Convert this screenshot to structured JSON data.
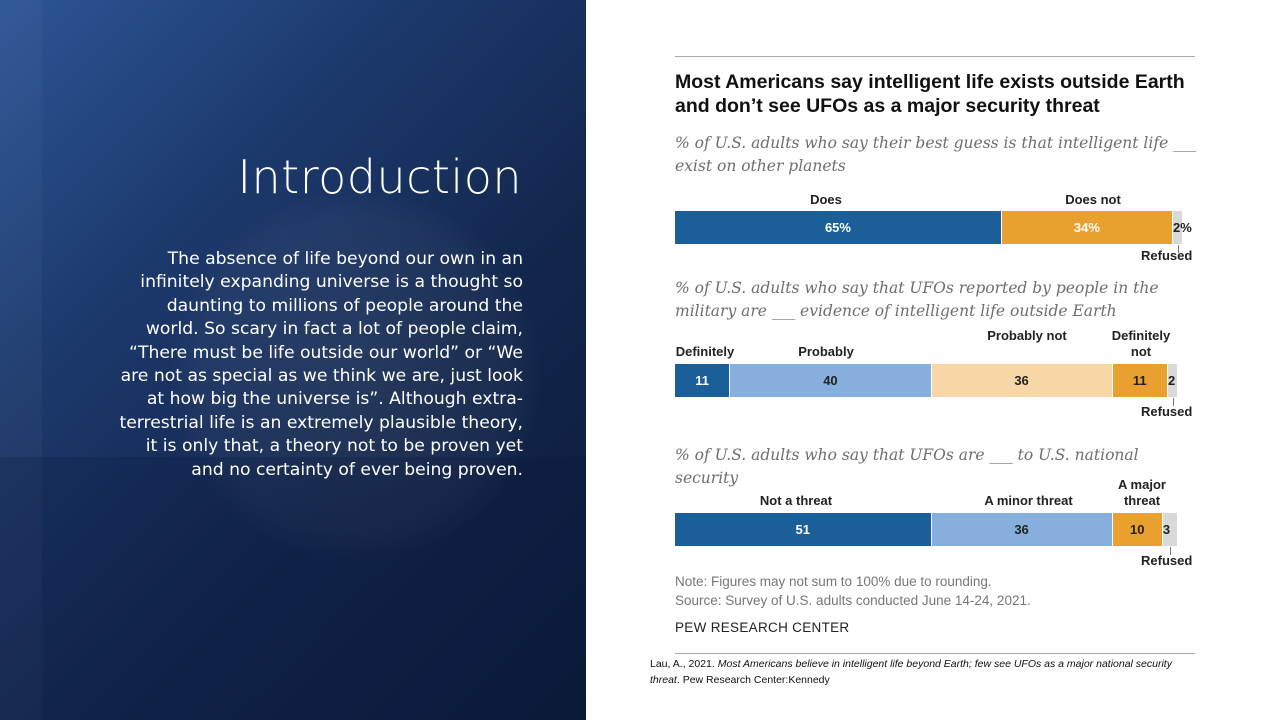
{
  "slide": {
    "title": "Introduction",
    "body": "The absence of life beyond our own in an infinitely expanding universe is a thought so daunting to millions of people around the world. So scary in fact a lot of people claim, “There must be life outside our world” or “We are not as special as we think we are, just look at how big the universe is”. Although extra-terrestrial life is an extremely plausible theory, it is only that, a theory not to be proven yet and no certainty of ever being proven."
  },
  "chart": {
    "title": "Most Americans say intelligent life exists outside Earth and don’t see UFOs as a major security threat",
    "note": "Note: Figures may not sum to 100% due to rounding.",
    "source": "Source: Survey of U.S. adults conducted June 14-24, 2021.",
    "org": "PEW RESEARCH CENTER"
  },
  "citation": {
    "author": "Lau, A., 2021.",
    "title": "Most Americans believe in intelligent life beyond Earth; few see UFOs as a major national security threat",
    "publisher": ". Pew Research Center:Kennedy"
  },
  "colors": {
    "dark_blue": "#1b5f99",
    "light_blue": "#86afde",
    "peach": "#f7d7a5",
    "orange": "#eaa02f",
    "gray": "#d9d9d9"
  },
  "chart_data": [
    {
      "type": "bar",
      "orientation": "horizontal-stacked",
      "subtitle": "% of U.S. adults who say their best guess is that intelligent life ___ exist on other planets",
      "segments": [
        {
          "name": "Does",
          "value": 65,
          "label": "65%"
        },
        {
          "name": "Does not",
          "value": 34,
          "label": "34%"
        }
      ],
      "refused": {
        "name": "Refused",
        "value": 2,
        "label": "2%"
      }
    },
    {
      "type": "bar",
      "orientation": "horizontal-stacked",
      "subtitle": "% of U.S. adults who say that UFOs reported by people in the military are ___ evidence of intelligent life outside Earth",
      "segments": [
        {
          "name": "Definitely",
          "value": 11,
          "label": "11"
        },
        {
          "name": "Probably",
          "value": 40,
          "label": "40"
        },
        {
          "name": "Probably not",
          "value": 36,
          "label": "36"
        },
        {
          "name": "Definitely not",
          "value": 11,
          "label": "11"
        }
      ],
      "refused": {
        "name": "Refused",
        "value": 2,
        "label": "2"
      }
    },
    {
      "type": "bar",
      "orientation": "horizontal-stacked",
      "subtitle": "% of U.S. adults who say that UFOs are ___ to U.S. national security",
      "segments": [
        {
          "name": "Not a threat",
          "value": 51,
          "label": "51"
        },
        {
          "name": "A minor threat",
          "value": 36,
          "label": "36"
        },
        {
          "name": "A major threat",
          "value": 10,
          "label": "10"
        }
      ],
      "refused": {
        "name": "Refused",
        "value": 3,
        "label": "3"
      }
    }
  ]
}
